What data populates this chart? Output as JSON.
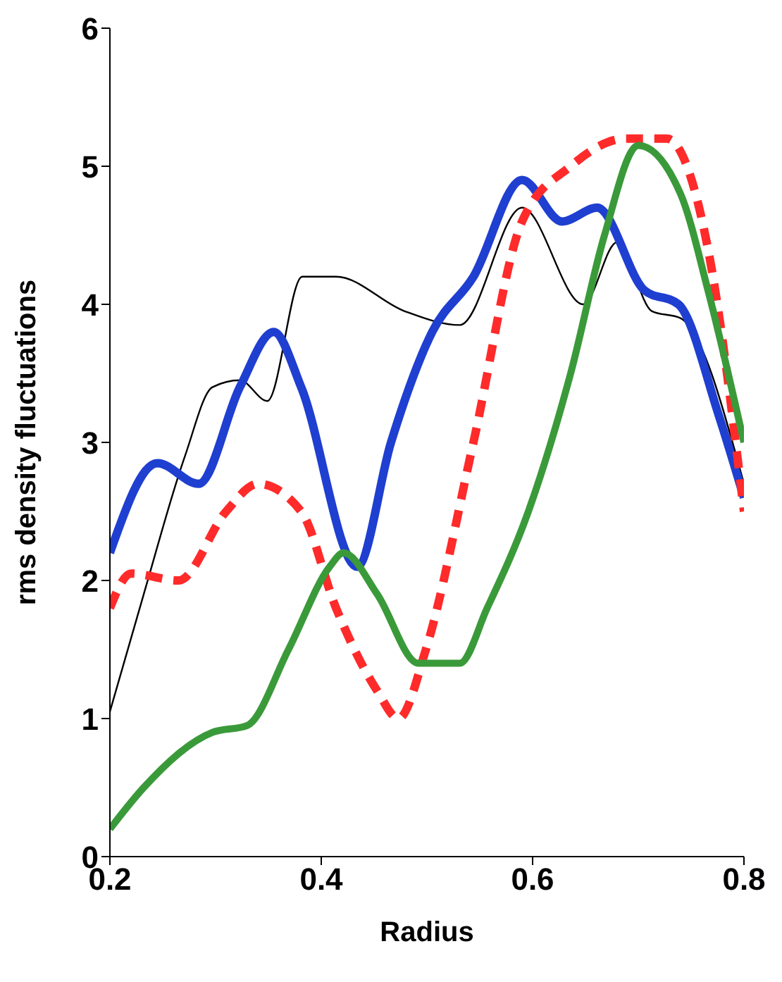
{
  "chart_data": {
    "type": "line",
    "xlabel": "Radius",
    "ylabel": "rms density fluctuations",
    "xlim": [
      0.2,
      0.8
    ],
    "ylim": [
      0,
      6
    ],
    "xticks": [
      0.2,
      0.4,
      0.6,
      0.8
    ],
    "yticks": [
      0,
      1,
      2,
      3,
      4,
      5,
      6
    ],
    "marker": "none",
    "series": [
      {
        "color": "#000000",
        "line_style": "solid",
        "x": [
          0.2,
          0.232,
          0.271,
          0.297,
          0.323,
          0.349,
          0.382,
          0.414,
          0.479,
          0.531,
          0.59,
          0.648,
          0.68,
          0.713,
          0.74,
          0.8
        ],
        "values": [
          1.05,
          1.9,
          2.9,
          3.4,
          3.45,
          3.3,
          4.2,
          4.2,
          3.95,
          3.85,
          4.7,
          4.0,
          4.45,
          3.95,
          3.9,
          2.7
        ]
      },
      {
        "color": "#1f3fd0",
        "line_style": "solid",
        "x": [
          0.2,
          0.245,
          0.284,
          0.323,
          0.355,
          0.381,
          0.434,
          0.466,
          0.505,
          0.544,
          0.59,
          0.628,
          0.661,
          0.706,
          0.738,
          0.776,
          0.8
        ],
        "values": [
          2.2,
          2.85,
          2.7,
          3.4,
          3.8,
          3.4,
          2.1,
          3.0,
          3.8,
          4.2,
          4.9,
          4.6,
          4.7,
          4.1,
          4.0,
          3.2,
          2.6
        ]
      },
      {
        "color": "#ff2a2a",
        "line_style": "dashed",
        "x": [
          0.2,
          0.22,
          0.265,
          0.31,
          0.34,
          0.381,
          0.414,
          0.453,
          0.473,
          0.499,
          0.544,
          0.59,
          0.636,
          0.688,
          0.727,
          0.766,
          0.8
        ],
        "values": [
          1.8,
          2.05,
          2.0,
          2.5,
          2.7,
          2.5,
          1.8,
          1.2,
          1.0,
          1.5,
          3.0,
          4.6,
          5.0,
          5.2,
          5.2,
          4.4,
          2.5
        ]
      },
      {
        "color": "#3a9a3a",
        "line_style": "solid",
        "x": [
          0.2,
          0.232,
          0.297,
          0.33,
          0.369,
          0.408,
          0.421,
          0.453,
          0.492,
          0.531,
          0.557,
          0.596,
          0.636,
          0.668,
          0.7,
          0.74,
          0.766,
          0.8
        ],
        "values": [
          0.2,
          0.5,
          0.9,
          0.95,
          1.5,
          2.1,
          2.2,
          1.9,
          1.4,
          1.4,
          1.8,
          2.5,
          3.5,
          4.5,
          5.15,
          4.8,
          4.1,
          3.0
        ]
      }
    ]
  }
}
